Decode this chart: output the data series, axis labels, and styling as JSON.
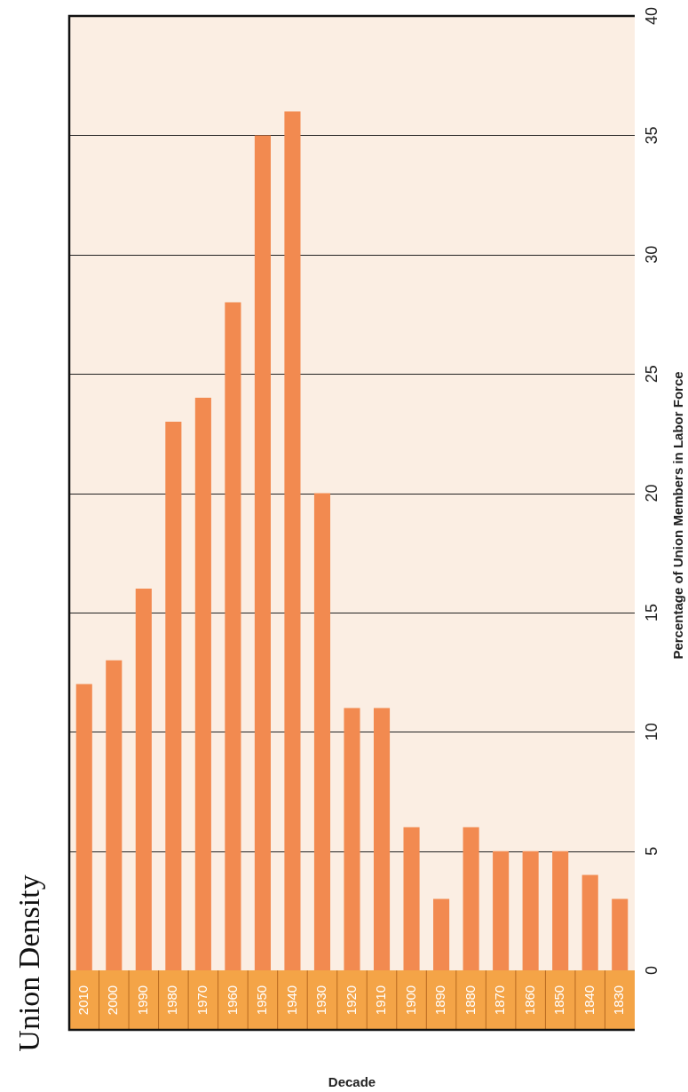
{
  "chart_data": {
    "type": "bar",
    "title": "Union Density",
    "xlabel": "Decade",
    "ylabel": "Percentage of Union Members in Labor Force",
    "categories": [
      "2010",
      "2000",
      "1990",
      "1980",
      "1970",
      "1960",
      "1950",
      "1940",
      "1930",
      "1920",
      "1910",
      "1900",
      "1890",
      "1880",
      "1870",
      "1860",
      "1850",
      "1840",
      "1830"
    ],
    "values": [
      12,
      13,
      16,
      23,
      24,
      28,
      35,
      36,
      20,
      11,
      11,
      6,
      3,
      6,
      5,
      5,
      5,
      4,
      3
    ],
    "color": "#f28a50",
    "ylim": [
      0,
      40
    ],
    "yticks": [
      0,
      5,
      10,
      15,
      20,
      25,
      30,
      35,
      40
    ],
    "grid": "y"
  }
}
